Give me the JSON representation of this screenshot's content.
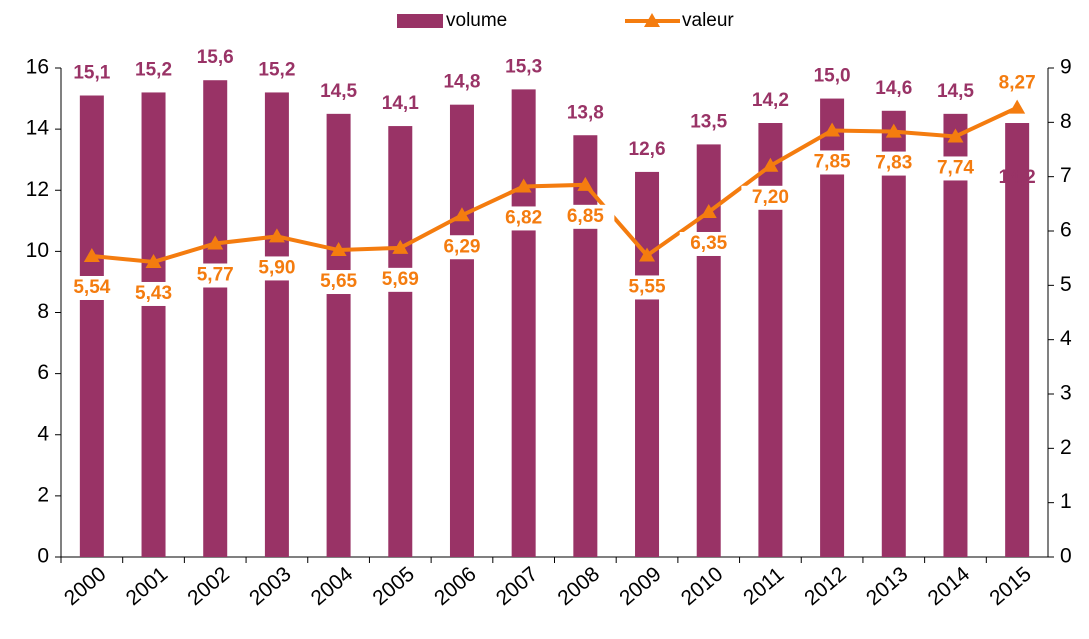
{
  "chart_data": {
    "type": "bar_line",
    "categories": [
      "2000",
      "2001",
      "2002",
      "2003",
      "2004",
      "2005",
      "2006",
      "2007",
      "2008",
      "2009",
      "2010",
      "2011",
      "2012",
      "2013",
      "2014",
      "2015"
    ],
    "series": [
      {
        "name": "volume",
        "color": "#993366",
        "type": "bar",
        "values": [
          15.1,
          15.2,
          15.6,
          15.2,
          14.5,
          14.1,
          14.8,
          15.3,
          13.8,
          12.6,
          13.5,
          14.2,
          15.0,
          14.6,
          14.5,
          14.2
        ],
        "value_labels": [
          "15,1",
          "15,2",
          "15,6",
          "15,2",
          "14,5",
          "14,1",
          "14,8",
          "15,3",
          "13,8",
          "12,6",
          "13,5",
          "14,2",
          "15,0",
          "14,6",
          "14,5",
          "14,2"
        ]
      },
      {
        "name": "valeur",
        "color": "#f47c0f",
        "type": "line",
        "axis": "y2",
        "values": [
          5.54,
          5.43,
          5.77,
          5.9,
          5.65,
          5.69,
          6.29,
          6.82,
          6.85,
          5.55,
          6.35,
          7.2,
          7.85,
          7.83,
          7.74,
          8.27
        ],
        "value_labels": [
          "5,54",
          "5,43",
          "5,77",
          "5,90",
          "5,65",
          "5,69",
          "6,29",
          "6,82",
          "6,85",
          "5,55",
          "6,35",
          "7,20",
          "7,85",
          "7,83",
          "7,74",
          "8,27"
        ]
      }
    ],
    "ylim": [
      0,
      16
    ],
    "yticks": [
      0,
      2,
      4,
      6,
      8,
      10,
      12,
      14,
      16
    ],
    "y2lim": [
      0,
      9
    ],
    "y2ticks": [
      0,
      1,
      2,
      3,
      4,
      5,
      6,
      7,
      8,
      9
    ],
    "legend": "top"
  }
}
